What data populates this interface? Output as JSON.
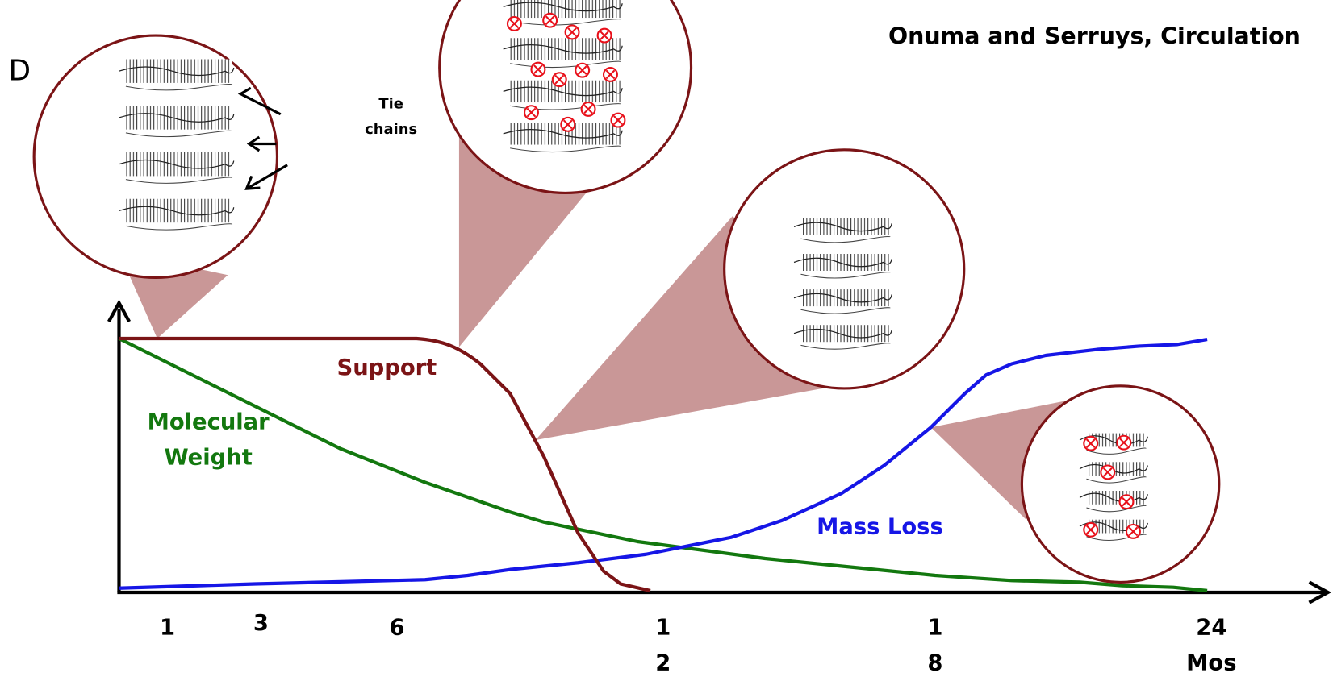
{
  "panel_label": "D",
  "citation": "Onuma and Serruys, Circulation",
  "annotations": {
    "tie_chains": [
      "Tie",
      "chains"
    ]
  },
  "curves": {
    "support": "Support",
    "molecular_weight": [
      "Molecular",
      "Weight"
    ],
    "mass_loss": "Mass Loss"
  },
  "x_labels": [
    [
      "1"
    ],
    [
      "3"
    ],
    [
      "6"
    ],
    [
      "1",
      "2"
    ],
    [
      "1",
      "8"
    ],
    [
      "24",
      "Mos"
    ]
  ]
}
